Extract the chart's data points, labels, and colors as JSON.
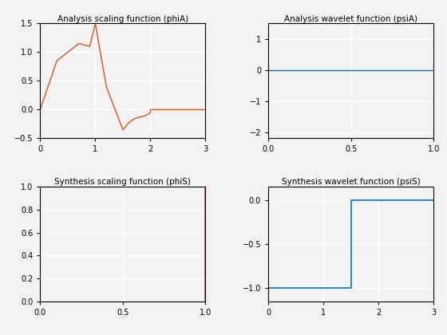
{
  "title_phiA": "Analysis scaling function (phiA)",
  "title_psiA": "Analysis wavelet function (psiA)",
  "title_phiS": "Synthesis scaling function (phiS)",
  "title_psiS": "Synthesis wavelet function (psiS)",
  "color_orange": "#D95319",
  "color_blue": "#0072BD",
  "background_color": "#f2f2f2",
  "grid_color": "white",
  "phiA_xlim": [
    0,
    3
  ],
  "phiA_ylim": [
    -0.5,
    1.5
  ],
  "psiA_xlim": [
    0,
    1
  ],
  "psiA_ylim": [
    -2.2,
    1.5
  ],
  "phiS_xlim": [
    0,
    1
  ],
  "phiS_ylim": [
    0,
    1
  ],
  "psiS_xlim": [
    0,
    3
  ],
  "psiS_ylim": [
    -1.15,
    0.15
  ],
  "phiA_xticks": [
    0,
    1,
    2,
    3
  ],
  "phiA_yticks": [
    -0.5,
    0,
    0.5,
    1,
    1.5
  ],
  "psiA_xticks": [
    0,
    0.5,
    1
  ],
  "psiA_yticks": [
    -2,
    -1,
    0,
    1
  ],
  "phiS_xticks": [
    0,
    0.5,
    1
  ],
  "phiS_yticks": [
    0,
    0.2,
    0.4,
    0.6,
    0.8,
    1
  ],
  "psiS_xticks": [
    0,
    1,
    2,
    3
  ],
  "psiS_yticks": [
    -1,
    -0.5,
    0
  ]
}
